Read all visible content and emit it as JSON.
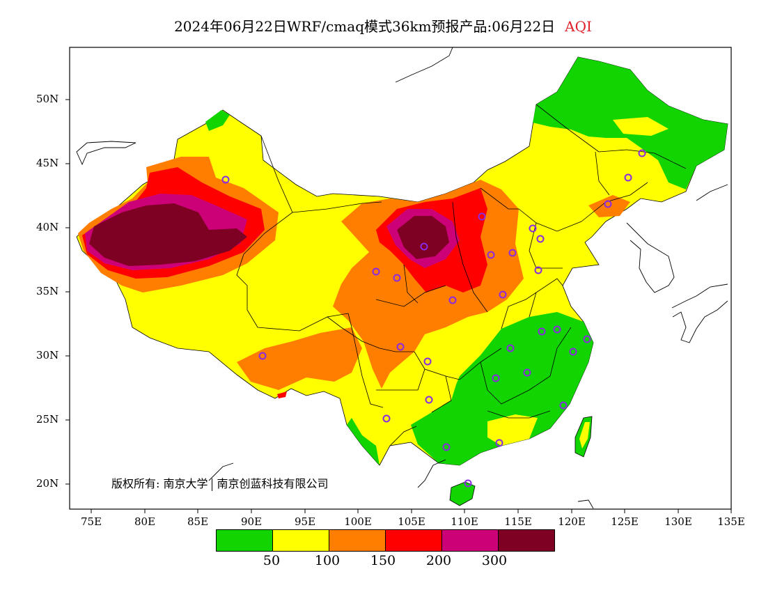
{
  "title": {
    "main": "2024年06月22日WRF/cmaq模式36km预报产品:06月22日",
    "variable": "AQI"
  },
  "credit": {
    "part1": "版权所有: 南京大学",
    "part2": "南京创蓝科技有限公司"
  },
  "axes": {
    "lat_labels": [
      "50N",
      "45N",
      "40N",
      "35N",
      "30N",
      "25N",
      "20N"
    ],
    "lon_labels": [
      "75E",
      "80E",
      "85E",
      "90E",
      "95E",
      "100E",
      "105E",
      "110E",
      "115E",
      "120E",
      "125E",
      "130E",
      "135E"
    ]
  },
  "legend": {
    "colors": [
      "#11d400",
      "#ffff00",
      "#ff7e00",
      "#ff0000",
      "#cc0077",
      "#7e0023"
    ],
    "ticks": [
      "50",
      "100",
      "150",
      "200",
      "300"
    ]
  },
  "colors": {
    "good": "#11d400",
    "moderate": "#ffff00",
    "usg": "#ff7e00",
    "unhealthy": "#ff0000",
    "very_unhealthy": "#cc0077",
    "hazardous": "#7e0023",
    "station_marker": "#8a2be2",
    "title_accent": "#e0202a"
  }
}
